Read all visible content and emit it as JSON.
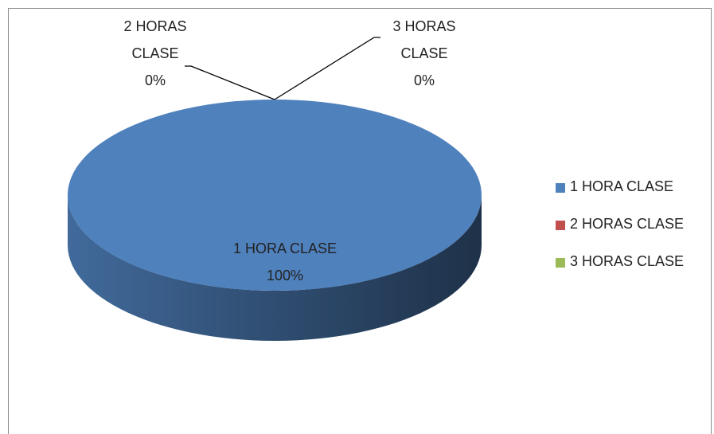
{
  "chart_data": {
    "type": "pie",
    "categories": [
      "1 HORA CLASE",
      "2 HORAS CLASE",
      "3 HORAS CLASE"
    ],
    "values": [
      100,
      0,
      0
    ],
    "value_labels": [
      "100%",
      "0%",
      "0%"
    ],
    "colors": [
      "#4f81bd",
      "#c0504d",
      "#9bbb59"
    ],
    "legend": "right"
  }
}
